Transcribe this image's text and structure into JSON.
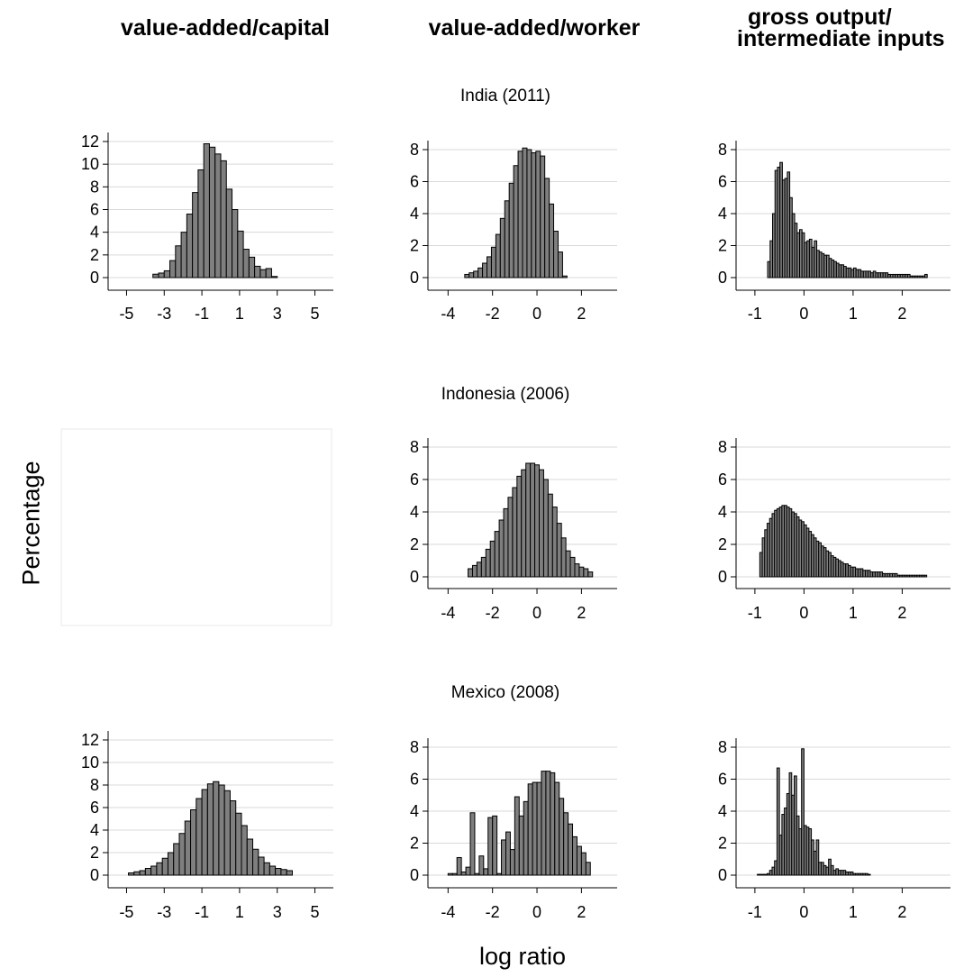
{
  "column_titles": [
    "value-added/capital",
    "value-added/worker",
    "gross output/",
    "intermediate inputs"
  ],
  "row_titles": [
    "India (2011)",
    "Indonesia (2006)",
    "Mexico (2008)"
  ],
  "y_axis_label": "Percentage",
  "x_axis_label": "log ratio",
  "colors": {
    "bar_fill": "#7f7f7f",
    "bar_stroke": "#000000",
    "grid": "#d9d9d9",
    "empty_panel_border": "#e8e8e8"
  },
  "chart_data": [
    {
      "type": "bar",
      "panel": "India VA/K",
      "row": 0,
      "col": 0,
      "xlim": [
        -5.5,
        5.5
      ],
      "xticks": [
        -5,
        -3,
        -1,
        1,
        3,
        5
      ],
      "ylim": [
        0,
        12
      ],
      "yticks": [
        0,
        2,
        4,
        6,
        8,
        10,
        12
      ],
      "bin_start": -3.6,
      "bin_width": 0.3,
      "values": [
        0.3,
        0.4,
        0.6,
        1.5,
        2.8,
        4.0,
        5.6,
        7.5,
        9.5,
        11.8,
        11.5,
        10.9,
        10.3,
        7.8,
        6.0,
        4.1,
        2.5,
        1.8,
        1.0,
        0.7,
        0.8,
        0.1
      ]
    },
    {
      "type": "bar",
      "panel": "India VA/L",
      "row": 0,
      "col": 1,
      "xlim": [
        -4.5,
        3.2
      ],
      "xticks": [
        -4,
        -2,
        0,
        2
      ],
      "ylim": [
        0,
        8.5
      ],
      "yticks": [
        0,
        2,
        4,
        6,
        8
      ],
      "bin_start": -3.25,
      "bin_width": 0.2,
      "values": [
        0.2,
        0.3,
        0.4,
        0.6,
        0.9,
        1.3,
        1.9,
        2.7,
        3.7,
        4.8,
        5.9,
        7.0,
        7.9,
        8.1,
        8.0,
        7.8,
        7.9,
        7.6,
        6.2,
        4.6,
        2.9,
        1.6,
        0.1
      ]
    },
    {
      "type": "bar",
      "panel": "India GO/II",
      "row": 0,
      "col": 2,
      "xlim": [
        -1.2,
        2.8
      ],
      "xticks": [
        -1,
        0,
        1,
        2
      ],
      "ylim": [
        0,
        8.5
      ],
      "yticks": [
        0,
        2,
        4,
        6,
        8
      ],
      "bin_start": -0.74,
      "bin_width": 0.05,
      "values": [
        1.0,
        2.3,
        4.0,
        6.7,
        6.9,
        7.2,
        6.1,
        6.2,
        6.6,
        5.0,
        4.0,
        3.4,
        2.8,
        3.0,
        2.8,
        2.2,
        2.3,
        2.4,
        1.9,
        2.3,
        1.7,
        1.6,
        1.5,
        1.4,
        1.4,
        1.2,
        1.1,
        1.0,
        0.9,
        0.8,
        0.8,
        0.7,
        0.6,
        0.6,
        0.5,
        0.6,
        0.5,
        0.5,
        0.4,
        0.4,
        0.4,
        0.4,
        0.3,
        0.4,
        0.3,
        0.3,
        0.3,
        0.3,
        0.3,
        0.2,
        0.2,
        0.2,
        0.2,
        0.2,
        0.2,
        0.2,
        0.2,
        0.2,
        0.1,
        0.1,
        0.1,
        0.1,
        0.1,
        0.1,
        0.2
      ]
    },
    {
      "type": "bar",
      "panel": "Indonesia VA/L",
      "row": 1,
      "col": 1,
      "xlim": [
        -4.5,
        3.2
      ],
      "xticks": [
        -4,
        -2,
        0,
        2
      ],
      "ylim": [
        0,
        8.5
      ],
      "yticks": [
        0,
        2,
        4,
        6,
        8
      ],
      "bin_start": -3.1,
      "bin_width": 0.2,
      "values": [
        0.5,
        0.7,
        0.9,
        1.2,
        1.7,
        2.2,
        2.8,
        3.5,
        4.2,
        4.9,
        5.5,
        6.2,
        6.6,
        7.0,
        7.0,
        6.9,
        6.6,
        6.0,
        5.1,
        4.3,
        3.3,
        2.4,
        1.6,
        1.2,
        0.8,
        0.6,
        0.5,
        0.3
      ]
    },
    {
      "type": "bar",
      "panel": "Indonesia GO/II",
      "row": 1,
      "col": 2,
      "xlim": [
        -1.2,
        2.8
      ],
      "xticks": [
        -1,
        0,
        1,
        2
      ],
      "ylim": [
        0,
        8.5
      ],
      "yticks": [
        0,
        2,
        4,
        6,
        8
      ],
      "bin_start": -0.9,
      "bin_width": 0.05,
      "values": [
        1.5,
        2.4,
        2.9,
        3.3,
        3.6,
        3.9,
        4.1,
        4.2,
        4.3,
        4.4,
        4.4,
        4.3,
        4.2,
        4.0,
        3.9,
        3.7,
        3.5,
        3.4,
        3.2,
        3.0,
        2.8,
        2.6,
        2.4,
        2.2,
        2.1,
        1.9,
        1.8,
        1.6,
        1.5,
        1.3,
        1.2,
        1.1,
        1.0,
        0.9,
        0.8,
        0.8,
        0.7,
        0.6,
        0.6,
        0.5,
        0.5,
        0.5,
        0.4,
        0.4,
        0.4,
        0.3,
        0.3,
        0.3,
        0.3,
        0.3,
        0.2,
        0.2,
        0.2,
        0.2,
        0.2,
        0.2,
        0.1,
        0.1,
        0.1,
        0.1,
        0.1,
        0.1,
        0.1,
        0.1,
        0.1,
        0.1,
        0.1,
        0.1
      ]
    },
    {
      "type": "bar",
      "panel": "Mexico VA/K",
      "row": 2,
      "col": 0,
      "xlim": [
        -5.5,
        5.5
      ],
      "xticks": [
        -5,
        -3,
        -1,
        1,
        3,
        5
      ],
      "ylim": [
        0,
        13
      ],
      "yticks": [
        0,
        2,
        4,
        6,
        8,
        10,
        12
      ],
      "bin_start": -4.9,
      "bin_width": 0.3,
      "values": [
        0.2,
        0.3,
        0.4,
        0.6,
        0.8,
        1.1,
        1.5,
        2.0,
        2.8,
        3.7,
        4.8,
        5.8,
        6.8,
        7.6,
        8.1,
        8.3,
        8.0,
        7.5,
        6.6,
        5.5,
        4.4,
        3.2,
        2.3,
        1.6,
        1.1,
        0.8,
        0.6,
        0.5,
        0.4
      ]
    },
    {
      "type": "bar",
      "panel": "Mexico VA/L",
      "row": 2,
      "col": 1,
      "xlim": [
        -4.5,
        3.2
      ],
      "xticks": [
        -4,
        -2,
        0,
        2
      ],
      "ylim": [
        0,
        8.5
      ],
      "yticks": [
        0,
        2,
        4,
        6,
        8
      ],
      "bin_start": -4.0,
      "bin_width": 0.2,
      "values": [
        0.1,
        0.1,
        1.1,
        0.2,
        0.5,
        3.9,
        0.1,
        1.2,
        0.4,
        3.6,
        3.7,
        0.1,
        2.2,
        2.7,
        1.6,
        4.9,
        3.7,
        4.6,
        5.7,
        5.8,
        5.8,
        6.5,
        6.5,
        6.4,
        5.8,
        4.8,
        3.9,
        3.2,
        2.4,
        1.8,
        1.4,
        0.8
      ]
    },
    {
      "type": "bar",
      "panel": "Mexico GO/II",
      "row": 2,
      "col": 2,
      "xlim": [
        -1.2,
        2.8
      ],
      "xticks": [
        -1,
        0,
        1,
        2
      ],
      "ylim": [
        0,
        8.5
      ],
      "yticks": [
        0,
        2,
        4,
        6,
        8
      ],
      "bin_start": -0.95,
      "bin_width": 0.05,
      "values": [
        0.05,
        0.05,
        0.05,
        0.05,
        0.1,
        0.3,
        0.5,
        0.9,
        6.7,
        2.5,
        3.8,
        4.2,
        5.1,
        6.4,
        5.0,
        6.2,
        3.7,
        2.9,
        7.9,
        3.1,
        3.0,
        2.9,
        2.2,
        1.5,
        2.2,
        0.8,
        0.8,
        0.6,
        0.5,
        1.0,
        0.6,
        0.3,
        0.4,
        0.3,
        0.3,
        0.3,
        0.2,
        0.2,
        0.2,
        0.1,
        0.1,
        0.1,
        0.1,
        0.1,
        0.1,
        0.05
      ]
    }
  ]
}
